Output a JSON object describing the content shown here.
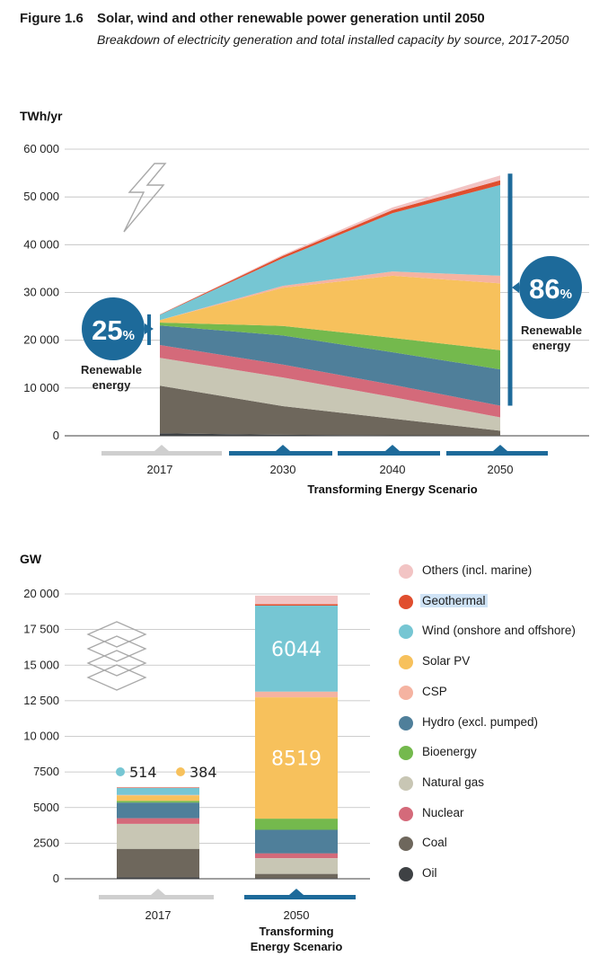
{
  "figure": {
    "number": "Figure 1.6",
    "title": "Solar, wind and other renewable power generation until 2050",
    "subtitle": "Breakdown of electricity generation and total installed capacity by source, 2017-2050"
  },
  "legend": {
    "items": [
      {
        "key": "others",
        "label": "Others (incl. marine)",
        "color": "#f2c4c4",
        "highlighted": false
      },
      {
        "key": "geothermal",
        "label": "Geothermal",
        "color": "#e04e2e",
        "highlighted": true
      },
      {
        "key": "wind",
        "label": "Wind (onshore and offshore)",
        "color": "#76c6d3",
        "highlighted": false
      },
      {
        "key": "solar_pv",
        "label": "Solar PV",
        "color": "#f7c15c",
        "highlighted": false
      },
      {
        "key": "csp",
        "label": "CSP",
        "color": "#f5b3a1",
        "highlighted": false
      },
      {
        "key": "hydro",
        "label": "Hydro (excl. pumped)",
        "color": "#4f7f9a",
        "highlighted": false
      },
      {
        "key": "bioenergy",
        "label": "Bioenergy",
        "color": "#74b94d",
        "highlighted": false
      },
      {
        "key": "natural_gas",
        "label": "Natural gas",
        "color": "#c8c6b4",
        "highlighted": false
      },
      {
        "key": "nuclear",
        "label": "Nuclear",
        "color": "#d46a7a",
        "highlighted": false
      },
      {
        "key": "coal",
        "label": "Coal",
        "color": "#6e675c",
        "highlighted": false
      },
      {
        "key": "oil",
        "label": "Oil",
        "color": "#3e4144",
        "highlighted": false
      }
    ]
  },
  "chart_data": [
    {
      "type": "area",
      "ylabel": "TWh/yr",
      "ylim": [
        0,
        60000
      ],
      "yticks": [
        "0",
        "10 000",
        "20 000",
        "30 000",
        "40 000",
        "50 000",
        "60 000"
      ],
      "x": [
        "2017",
        "2030",
        "2040",
        "2050"
      ],
      "scenario_label": "Transforming Energy Scenario",
      "series": [
        {
          "key": "oil",
          "values": [
            500,
            200,
            100,
            50
          ]
        },
        {
          "key": "coal",
          "values": [
            10000,
            6000,
            3500,
            1000
          ]
        },
        {
          "key": "natural_gas",
          "values": [
            5800,
            6000,
            4500,
            2800
          ]
        },
        {
          "key": "nuclear",
          "values": [
            2700,
            2700,
            2600,
            2450
          ]
        },
        {
          "key": "hydro",
          "values": [
            4100,
            6100,
            6800,
            7600
          ]
        },
        {
          "key": "bioenergy",
          "values": [
            600,
            2000,
            3000,
            4000
          ]
        },
        {
          "key": "solar_pv",
          "values": [
            500,
            8000,
            13000,
            14000
          ]
        },
        {
          "key": "csp",
          "values": [
            20,
            400,
            900,
            1600
          ]
        },
        {
          "key": "wind",
          "values": [
            1100,
            5800,
            12200,
            19000
          ]
        },
        {
          "key": "geothermal",
          "values": [
            80,
            450,
            650,
            1000
          ]
        },
        {
          "key": "others",
          "values": [
            20,
            250,
            550,
            1000
          ]
        }
      ],
      "annotations": [
        {
          "value": "25",
          "unit": "%",
          "label": "Renewable energy",
          "year": "2017"
        },
        {
          "value": "86",
          "unit": "%",
          "label": "Renewable energy",
          "year": "2050"
        }
      ]
    },
    {
      "type": "bar",
      "stacked": true,
      "ylabel": "GW",
      "ylim": [
        0,
        20000
      ],
      "yticks": [
        "0",
        "2500",
        "5000",
        "7500",
        "10 000",
        "12 500",
        "15 000",
        "17 500",
        "20 000"
      ],
      "categories": [
        "2017",
        "2050"
      ],
      "category_sublabel": "Transforming Energy Scenario",
      "series": [
        {
          "key": "oil",
          "values": [
            100,
            40
          ]
        },
        {
          "key": "coal",
          "values": [
            2000,
            300
          ]
        },
        {
          "key": "natural_gas",
          "values": [
            1750,
            1100
          ]
        },
        {
          "key": "nuclear",
          "values": [
            400,
            350
          ]
        },
        {
          "key": "hydro",
          "values": [
            1100,
            1650
          ]
        },
        {
          "key": "bioenergy",
          "values": [
            120,
            780
          ]
        },
        {
          "key": "solar_pv",
          "values": [
            384,
            8519
          ]
        },
        {
          "key": "csp",
          "values": [
            30,
            400
          ]
        },
        {
          "key": "wind",
          "values": [
            514,
            6044
          ]
        },
        {
          "key": "geothermal",
          "values": [
            12,
            100
          ]
        },
        {
          "key": "others",
          "values": [
            30,
            600
          ]
        }
      ],
      "data_labels": [
        {
          "category": "2017",
          "key": "wind",
          "text": "514"
        },
        {
          "category": "2017",
          "key": "solar_pv",
          "text": "384"
        },
        {
          "category": "2050",
          "key": "wind",
          "text": "6044"
        },
        {
          "category": "2050",
          "key": "solar_pv",
          "text": "8519"
        }
      ]
    }
  ]
}
